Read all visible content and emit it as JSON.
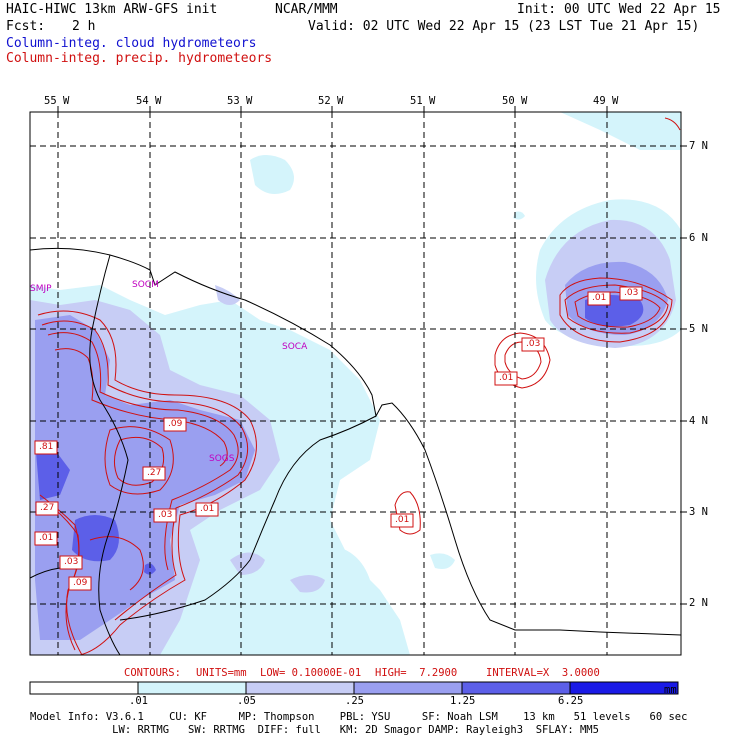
{
  "header": {
    "model_title": "HAIC-HIWC 13km ARW-GFS init",
    "agency": "NCAR/MMM",
    "init": "Init: 00 UTC Wed 22 Apr 15",
    "fcst_label": "Fcst:",
    "fcst_value": "2 h",
    "valid": "Valid: 02 UTC Wed 22 Apr 15 (23 LST Tue 21 Apr 15)",
    "field_cloud": "Column-integ. cloud hydrometeors",
    "field_precip": "Column-integ. precip. hydrometeors"
  },
  "map": {
    "lon_labels": [
      "55 W",
      "54 W",
      "53 W",
      "52 W",
      "51 W",
      "50 W",
      "49 W"
    ],
    "lat_labels": [
      "7 N",
      "6 N",
      "5 N",
      "4 N",
      "3 N",
      "2 N"
    ],
    "stations": [
      "SMJP",
      "SOCM",
      "SOCA",
      "SOGS"
    ],
    "contour_labels": [
      ".01",
      ".03",
      ".03",
      ".01",
      ".09",
      ".81",
      ".27",
      ".27",
      ".03",
      ".01",
      ".01",
      ".03",
      ".09",
      ".01"
    ]
  },
  "contours_info": {
    "label": "CONTOURS:",
    "units": "UNITS=mm",
    "low": "LOW= 0.10000E-01",
    "high": "HIGH=  7.2900",
    "interval": "INTERVAL=X  3.0000"
  },
  "colorbar": {
    "ticks": [
      ".01",
      ".05",
      ".25",
      "1.25",
      "6.25"
    ],
    "unit": "mm",
    "colors": [
      "#ffffff",
      "#d4f4fb",
      "#c7cdf5",
      "#9a9ff0",
      "#5c5fe8",
      "#1a1ae6"
    ]
  },
  "footer": {
    "line1": "Model Info: V3.6.1    CU: KF     MP: Thompson    PBL: YSU     SF: Noah LSM    13 km   51 levels   60 sec",
    "line2": "             LW: RRTMG   SW: RRTMG  DIFF: full   KM: 2D Smagor DAMP: Rayleigh3  SFLAY: MM5"
  }
}
